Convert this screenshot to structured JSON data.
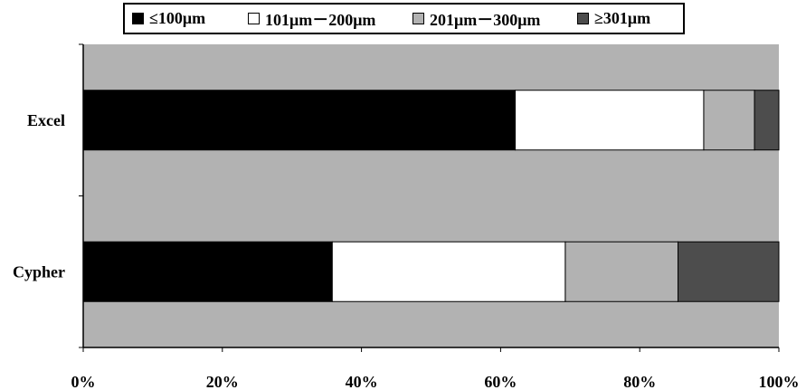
{
  "chart_data": {
    "type": "bar",
    "orientation": "horizontal",
    "stacked": "percent",
    "categories": [
      "Excel",
      "Cypher"
    ],
    "series": [
      {
        "name": "≤100μm",
        "values": [
          62.1,
          35.8
        ],
        "color": "#000000"
      },
      {
        "name": "101μm－200μm",
        "values": [
          27.1,
          33.5
        ],
        "color": "#ffffff"
      },
      {
        "name": "201μm－300μm",
        "values": [
          7.3,
          16.2
        ],
        "color": "#b2b2b2"
      },
      {
        "name": "≥301μm",
        "values": [
          3.5,
          14.5
        ],
        "color": "#4d4d4d"
      }
    ],
    "xlim": [
      0,
      100
    ],
    "x_ticks": [
      "0%",
      "20%",
      "40%",
      "60%",
      "80%",
      "100%"
    ],
    "plot_background": "#b2b2b2",
    "legend_position": "top"
  }
}
